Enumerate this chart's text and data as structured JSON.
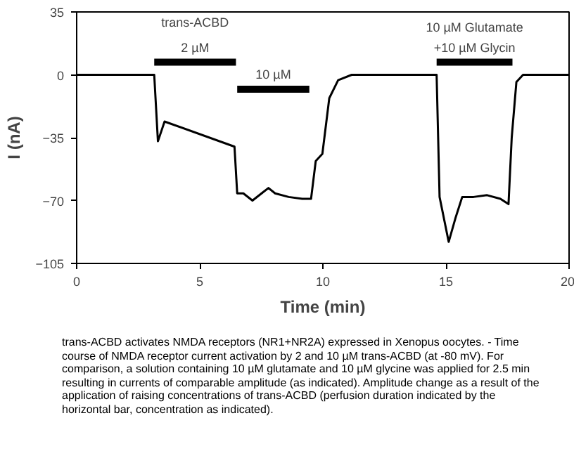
{
  "chart_data": {
    "type": "line",
    "xlabel": "Time (min)",
    "ylabel": "I (nA)",
    "series": [
      {
        "color": "#000000",
        "x": [
          0,
          3.15,
          3.3,
          3.57,
          6.41,
          6.52,
          6.77,
          7.14,
          7.51,
          7.79,
          8.06,
          8.61,
          9.16,
          9.52,
          9.71,
          9.98,
          10.26,
          10.62,
          11.17,
          14.62,
          14.74,
          15.11,
          15.38,
          15.66,
          16.12,
          16.67,
          17.21,
          17.54,
          17.67,
          17.86,
          18.13,
          20
        ],
        "values": [
          0,
          0,
          -37,
          -26,
          -40,
          -66,
          -66,
          -70,
          -66,
          -63,
          -66,
          -68,
          -69,
          -69,
          -48,
          -44,
          -13,
          -3,
          0,
          0,
          -68,
          -93,
          -80,
          -68,
          -68,
          -67,
          -69,
          -72,
          -35,
          -4,
          0,
          0
        ]
      },
      {
        "name": "2 µM",
        "color": "#000000",
        "x": [
          3.15,
          6.47
        ],
        "values": [
          7,
          7
        ]
      },
      {
        "name": "10 µM",
        "color": "#000000",
        "x": [
          6.52,
          9.45
        ],
        "values": [
          -8,
          -8
        ]
      },
      {
        "name": "10 µM Glutamate\n+10 µM Glycin",
        "color": "#000000",
        "x": [
          14.62,
          17.7
        ],
        "values": [
          7,
          7
        ]
      }
    ],
    "xlim": [
      0,
      20
    ],
    "xticks": [
      0,
      5,
      10,
      15,
      20
    ],
    "ylim": [
      -105,
      35
    ],
    "yticks": [
      -105,
      -70,
      -35,
      0,
      35
    ],
    "annotations": [
      "trans-ACBD",
      "trans-ACBD activates NMDA receptors (NR1+NR2A) expressed in Xenopus oocytes. - Time course of NMDA receptor current activation by 2 and 10 µM trans-ACBD (at -80 mV). For comparison, a solution containing 10 µM glutamate and 10 µM glycine was applied for 2.5 min resulting in currents of comparable amplitude (as indicated). Amplitude change as a result of the application of raising concentrations of trans-ACBD (perfusion duration indicated by the horizontal bar, concentration as indicated)."
    ],
    "grid": false,
    "legend": false,
    "marker": "none",
    "line_style": "solid"
  }
}
